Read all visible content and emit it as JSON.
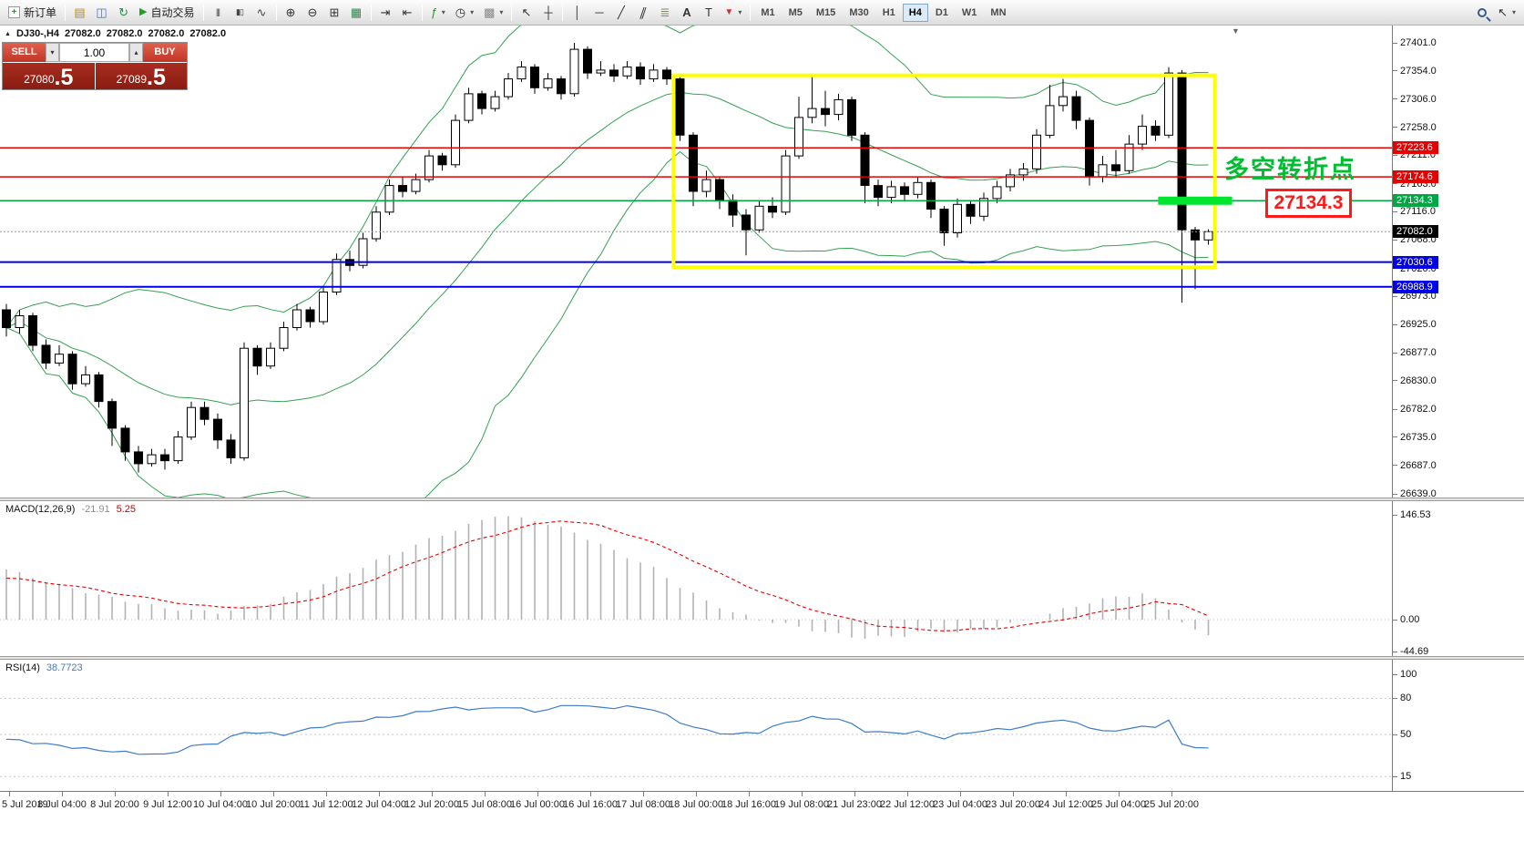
{
  "toolbar": {
    "new_order_label": "新订单",
    "autotrading_label": "自动交易",
    "timeframes": [
      "M1",
      "M5",
      "M15",
      "M30",
      "H1",
      "H4",
      "D1",
      "W1",
      "MN"
    ],
    "active_timeframe": "H4",
    "icons": {
      "new_order": "+",
      "new_chart": "▤",
      "profiles": "◫",
      "refresh": "↻",
      "autotrading": "▶",
      "bars": "|||",
      "candles": "▮▯",
      "line_chart": "∿",
      "zoom_in": "⊕",
      "zoom_out": "⊖",
      "tile_windows": "⊞",
      "market_grid": "▦",
      "auto_scroll": "⇥",
      "chart_shift": "⇤",
      "indicators": "ƒ",
      "periods": "◷",
      "templates": "▩",
      "cursor": "↖",
      "crosshair": "┼",
      "vline": "│",
      "hline": "─",
      "trendline": "╱",
      "channel": "∥",
      "fibonacci": "≣",
      "text": "A",
      "text_label": "T",
      "arrow_object": "▼",
      "caret": "▾",
      "spin_up": "▴",
      "spin_down": "▾",
      "panel_toggle": "▲",
      "shift_marker": "▼"
    }
  },
  "chart_header": {
    "symbol": "DJ30-,H4",
    "open": "27082.0",
    "high": "27082.0",
    "low": "27082.0",
    "close": "27082.0"
  },
  "trade_panel": {
    "sell_label": "SELL",
    "buy_label": "BUY",
    "volume": "1.00",
    "sell_price_main": "27080",
    "sell_price_frac": ".5",
    "buy_price_main": "27089",
    "buy_price_frac": ".5"
  },
  "annotations": {
    "turning_point": "多空转折点",
    "price_callout": "27134.3"
  },
  "price_scale": {
    "ticks": [
      27401.0,
      27354.0,
      27306.0,
      27258.0,
      27211.0,
      27163.0,
      27116.0,
      27068.0,
      27020.0,
      26973.0,
      26925.0,
      26877.0,
      26830.0,
      26782.0,
      26735.0,
      26687.0,
      26639.0
    ],
    "lines": [
      {
        "label": "27223.6",
        "price": 27223.6,
        "color": "#e80000",
        "width": 1.5,
        "type": "resistance"
      },
      {
        "label": "27174.6",
        "price": 27174.6,
        "color": "#e80000",
        "width": 1.5,
        "type": "resistance"
      },
      {
        "label": "27134.3",
        "price": 27134.3,
        "color": "#00a844",
        "width": 1.5,
        "type": "pivot"
      },
      {
        "label": "27030.6",
        "price": 27030.6,
        "color": "#0000e8",
        "width": 2,
        "type": "support"
      },
      {
        "label": "26988.9",
        "price": 26988.9,
        "color": "#0000e8",
        "width": 2,
        "type": "support"
      }
    ],
    "current_price": {
      "label": "27082.0",
      "price": 27082.0,
      "color": "#000000"
    }
  },
  "macd": {
    "title": "MACD(12,26,9)",
    "value_macd": "-21.91",
    "value_signal": "5.25",
    "scale_labels": [
      "146.53",
      "0.00",
      "-44.69"
    ]
  },
  "rsi": {
    "title": "RSI(14)",
    "value": "38.7723",
    "scale_labels": [
      "100",
      "80",
      "50",
      "15"
    ]
  },
  "chart_data": {
    "type": "candlestick",
    "symbol": "DJ30-",
    "timeframe": "H4",
    "y_range": [
      26639,
      27401
    ],
    "time_labels": [
      "5 Jul 2019",
      "8 Jul 04:00",
      "8 Jul 20:00",
      "9 Jul 12:00",
      "10 Jul 04:00",
      "10 Jul 20:00",
      "11 Jul 12:00",
      "12 Jul 04:00",
      "12 Jul 20:00",
      "15 Jul 08:00",
      "16 Jul 00:00",
      "16 Jul 16:00",
      "17 Jul 08:00",
      "18 Jul 00:00",
      "18 Jul 16:00",
      "19 Jul 08:00",
      "21 Jul 23:00",
      "22 Jul 12:00",
      "23 Jul 04:00",
      "23 Jul 20:00",
      "24 Jul 12:00",
      "25 Jul 04:00",
      "25 Jul 20:00"
    ],
    "candles": [
      [
        26950,
        26960,
        26905,
        26920
      ],
      [
        26920,
        26950,
        26910,
        26940
      ],
      [
        26940,
        26945,
        26880,
        26890
      ],
      [
        26890,
        26900,
        26850,
        26860
      ],
      [
        26860,
        26890,
        26855,
        26875
      ],
      [
        26875,
        26880,
        26815,
        26825
      ],
      [
        26825,
        26855,
        26820,
        26840
      ],
      [
        26840,
        26845,
        26785,
        26795
      ],
      [
        26795,
        26800,
        26720,
        26750
      ],
      [
        26750,
        26755,
        26695,
        26710
      ],
      [
        26710,
        26720,
        26675,
        26690
      ],
      [
        26690,
        26715,
        26685,
        26705
      ],
      [
        26705,
        26715,
        26680,
        26695
      ],
      [
        26695,
        26745,
        26690,
        26735
      ],
      [
        26735,
        26795,
        26730,
        26785
      ],
      [
        26785,
        26795,
        26755,
        26765
      ],
      [
        26765,
        26775,
        26715,
        26730
      ],
      [
        26730,
        26740,
        26690,
        26700
      ],
      [
        26700,
        26895,
        26695,
        26885
      ],
      [
        26885,
        26890,
        26840,
        26855
      ],
      [
        26855,
        26895,
        26850,
        26885
      ],
      [
        26885,
        26930,
        26880,
        26920
      ],
      [
        26920,
        26960,
        26915,
        26950
      ],
      [
        26950,
        26955,
        26920,
        26930
      ],
      [
        26930,
        26990,
        26925,
        26980
      ],
      [
        26980,
        27045,
        26975,
        27035
      ],
      [
        27035,
        27050,
        27015,
        27025
      ],
      [
        27025,
        27080,
        27020,
        27070
      ],
      [
        27070,
        27125,
        27065,
        27115
      ],
      [
        27115,
        27170,
        27110,
        27160
      ],
      [
        27160,
        27175,
        27140,
        27150
      ],
      [
        27150,
        27180,
        27145,
        27170
      ],
      [
        27170,
        27220,
        27165,
        27210
      ],
      [
        27210,
        27215,
        27185,
        27195
      ],
      [
        27195,
        27280,
        27190,
        27270
      ],
      [
        27270,
        27325,
        27265,
        27315
      ],
      [
        27315,
        27320,
        27280,
        27290
      ],
      [
        27290,
        27320,
        27285,
        27310
      ],
      [
        27310,
        27350,
        27305,
        27340
      ],
      [
        27340,
        27370,
        27335,
        27360
      ],
      [
        27360,
        27365,
        27315,
        27325
      ],
      [
        27325,
        27350,
        27320,
        27340
      ],
      [
        27340,
        27345,
        27305,
        27315
      ],
      [
        27315,
        27401,
        27310,
        27390
      ],
      [
        27390,
        27395,
        27340,
        27350
      ],
      [
        27350,
        27370,
        27345,
        27355
      ],
      [
        27355,
        27365,
        27335,
        27345
      ],
      [
        27345,
        27370,
        27340,
        27360
      ],
      [
        27360,
        27368,
        27330,
        27340
      ],
      [
        27340,
        27365,
        27335,
        27355
      ],
      [
        27355,
        27360,
        27330,
        27340
      ],
      [
        27340,
        27345,
        27235,
        27245
      ],
      [
        27245,
        27250,
        27125,
        27150
      ],
      [
        27150,
        27185,
        27140,
        27170
      ],
      [
        27170,
        27175,
        27120,
        27135
      ],
      [
        27135,
        27145,
        27090,
        27110
      ],
      [
        27110,
        27120,
        27042,
        27085
      ],
      [
        27085,
        27135,
        27080,
        27125
      ],
      [
        27125,
        27140,
        27105,
        27115
      ],
      [
        27115,
        27220,
        27110,
        27210
      ],
      [
        27210,
        27310,
        27205,
        27275
      ],
      [
        27275,
        27345,
        27265,
        27290
      ],
      [
        27290,
        27320,
        27260,
        27280
      ],
      [
        27280,
        27315,
        27270,
        27305
      ],
      [
        27305,
        27310,
        27235,
        27245
      ],
      [
        27245,
        27250,
        27130,
        27160
      ],
      [
        27160,
        27170,
        27125,
        27140
      ],
      [
        27140,
        27168,
        27130,
        27158
      ],
      [
        27158,
        27165,
        27135,
        27145
      ],
      [
        27145,
        27175,
        27138,
        27165
      ],
      [
        27165,
        27170,
        27105,
        27120
      ],
      [
        27120,
        27125,
        27058,
        27080
      ],
      [
        27080,
        27138,
        27072,
        27128
      ],
      [
        27128,
        27135,
        27095,
        27108
      ],
      [
        27108,
        27148,
        27100,
        27138
      ],
      [
        27138,
        27168,
        27130,
        27158
      ],
      [
        27158,
        27188,
        27150,
        27178
      ],
      [
        27178,
        27198,
        27168,
        27188
      ],
      [
        27188,
        27255,
        27180,
        27245
      ],
      [
        27245,
        27330,
        27240,
        27295
      ],
      [
        27295,
        27340,
        27285,
        27310
      ],
      [
        27310,
        27320,
        27255,
        27270
      ],
      [
        27270,
        27275,
        27160,
        27175
      ],
      [
        27175,
        27210,
        27165,
        27195
      ],
      [
        27195,
        27220,
        27175,
        27185
      ],
      [
        27185,
        27245,
        27180,
        27230
      ],
      [
        27230,
        27280,
        27220,
        27260
      ],
      [
        27260,
        27270,
        27235,
        27245
      ],
      [
        27245,
        27360,
        27240,
        27350
      ],
      [
        27350,
        27355,
        26962,
        27085
      ],
      [
        27085,
        27090,
        26985,
        27068
      ],
      [
        27068,
        27086,
        27060,
        27082
      ]
    ],
    "overlays": {
      "bollinger": {
        "period": 20,
        "deviation": 2,
        "color": "#35a053"
      }
    },
    "indicators": {
      "macd": {
        "histogram_waypoints": [
          [
            0,
            70
          ],
          [
            4,
            48
          ],
          [
            8,
            30
          ],
          [
            12,
            16
          ],
          [
            16,
            10
          ],
          [
            20,
            24
          ],
          [
            24,
            50
          ],
          [
            28,
            82
          ],
          [
            32,
            112
          ],
          [
            35,
            132
          ],
          [
            37,
            146
          ],
          [
            40,
            139
          ],
          [
            43,
            122
          ],
          [
            46,
            96
          ],
          [
            49,
            72
          ],
          [
            51,
            46
          ],
          [
            53,
            26
          ],
          [
            55,
            10
          ],
          [
            57,
            0
          ],
          [
            60,
            -10
          ],
          [
            62,
            -18
          ],
          [
            65,
            -26
          ],
          [
            68,
            -22
          ],
          [
            70,
            -14
          ],
          [
            72,
            -18
          ],
          [
            74,
            -12
          ],
          [
            76,
            -6
          ],
          [
            78,
            2
          ],
          [
            80,
            14
          ],
          [
            82,
            24
          ],
          [
            84,
            32
          ],
          [
            86,
            36
          ],
          [
            87,
            28
          ],
          [
            88,
            14
          ],
          [
            89,
            -4
          ],
          [
            90,
            -14
          ],
          [
            91,
            -21.91
          ]
        ],
        "signal_waypoints": [
          [
            0,
            58
          ],
          [
            4,
            50
          ],
          [
            8,
            38
          ],
          [
            12,
            26
          ],
          [
            16,
            17
          ],
          [
            20,
            18
          ],
          [
            24,
            32
          ],
          [
            28,
            58
          ],
          [
            32,
            88
          ],
          [
            36,
            114
          ],
          [
            40,
            133
          ],
          [
            42,
            139
          ],
          [
            45,
            131
          ],
          [
            48,
            114
          ],
          [
            51,
            92
          ],
          [
            54,
            64
          ],
          [
            57,
            40
          ],
          [
            60,
            20
          ],
          [
            63,
            4
          ],
          [
            66,
            -8
          ],
          [
            69,
            -14
          ],
          [
            72,
            -15
          ],
          [
            75,
            -12
          ],
          [
            78,
            -6
          ],
          [
            81,
            4
          ],
          [
            84,
            14
          ],
          [
            87,
            24
          ],
          [
            89,
            21
          ],
          [
            90,
            13
          ],
          [
            91,
            5.25
          ]
        ]
      },
      "rsi": {
        "levels": [
          80,
          50,
          15
        ],
        "waypoints": [
          [
            0,
            46
          ],
          [
            3,
            42
          ],
          [
            6,
            38
          ],
          [
            9,
            35
          ],
          [
            12,
            33
          ],
          [
            14,
            40
          ],
          [
            16,
            43
          ],
          [
            18,
            52
          ],
          [
            21,
            50
          ],
          [
            24,
            57
          ],
          [
            27,
            62
          ],
          [
            30,
            66
          ],
          [
            32,
            70
          ],
          [
            34,
            72
          ],
          [
            36,
            71
          ],
          [
            38,
            73
          ],
          [
            40,
            69
          ],
          [
            43,
            75
          ],
          [
            45,
            72
          ],
          [
            47,
            73
          ],
          [
            49,
            71
          ],
          [
            51,
            60
          ],
          [
            53,
            53
          ],
          [
            55,
            50
          ],
          [
            57,
            52
          ],
          [
            59,
            60
          ],
          [
            61,
            64
          ],
          [
            63,
            63
          ],
          [
            65,
            53
          ],
          [
            67,
            51
          ],
          [
            69,
            52
          ],
          [
            71,
            47
          ],
          [
            73,
            52
          ],
          [
            75,
            54
          ],
          [
            77,
            56
          ],
          [
            79,
            62
          ],
          [
            81,
            60
          ],
          [
            83,
            52
          ],
          [
            85,
            55
          ],
          [
            87,
            57
          ],
          [
            88,
            62
          ],
          [
            89,
            42
          ],
          [
            90,
            39
          ],
          [
            91,
            38.77
          ]
        ]
      }
    },
    "highlight_box": {
      "bar_start": 50.5,
      "bar_end": 91.5,
      "price_top": 27346,
      "price_bottom": 27022,
      "color": "#ffff00"
    },
    "green_highlight_segment": {
      "bar_start": 87.2,
      "bar_end": 92.8,
      "price": 27134.3,
      "color": "#00e62e"
    }
  }
}
